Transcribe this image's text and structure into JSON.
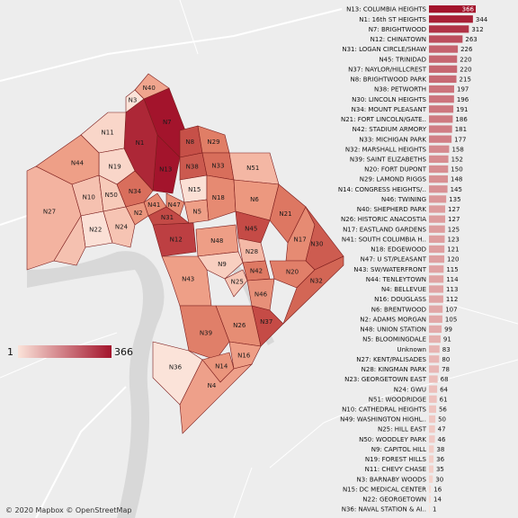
{
  "legend": {
    "min_label": "1",
    "max_label": "366",
    "color_low": "#fbe3d9",
    "color_high": "#a3142c"
  },
  "credit": "© 2020 Mapbox © OpenStreetMap",
  "chart_data": {
    "type": "bar",
    "orientation": "horizontal",
    "color_scale": {
      "min": 1,
      "max": 366,
      "low": "#fbe3d9",
      "high": "#a3142c"
    },
    "categories": [
      "N13: COLUMBIA HEIGHTS",
      "N1: 16th ST HEIGHTS",
      "N7: BRIGHTWOOD",
      "N12: CHINATOWN",
      "N31: LOGAN CIRCLE/SHAW",
      "N45: TRINIDAD",
      "N37: NAYLOR/HILLCREST",
      "N8: BRIGHTWOOD PARK",
      "N38: PETWORTH",
      "N30: LINCOLN HEIGHTS",
      "N34: MOUNT PLEASANT",
      "N21: FORT LINCOLN/GATE..",
      "N42: STADIUM ARMORY",
      "N33: MICHIGAN PARK",
      "N32: MARSHALL HEIGHTS",
      "N39: SAINT ELIZABETHS",
      "N20: FORT DUPONT",
      "N29: LAMOND RIGGS",
      "N14: CONGRESS HEIGHTS/..",
      "N46: TWINING",
      "N40: SHEPHERD PARK",
      "N26: HISTORIC ANACOSTIA",
      "N17: EASTLAND GARDENS",
      "N41: SOUTH COLUMBIA H..",
      "N18: EDGEWOOD",
      "N47: U ST/PLEASANT",
      "N43: SW/WATERFRONT",
      "N44: TENLEYTOWN",
      "N4: BELLEVUE",
      "N16: DOUGLASS",
      "N6: BRENTWOOD",
      "N2: ADAMS MORGAN",
      "N48: UNION STATION",
      "N5: BLOOMINGDALE",
      "Unknown",
      "N27: KENT/PALISADES",
      "N28: KINGMAN PARK",
      "N23: GEORGETOWN EAST",
      "N24: GWU",
      "N51: WOODRIDGE",
      "N10: CATHEDRAL HEIGHTS",
      "N49: WASHINGTON HIGHL..",
      "N25: HILL EAST",
      "N50: WOODLEY PARK",
      "N9: CAPITOL HILL",
      "N19: FOREST HILLS",
      "N11: CHEVY CHASE",
      "N3: BARNABY WOODS",
      "N15: DC MEDICAL CENTER",
      "N22: GEORGETOWN",
      "N36: NAVAL STATION & AI.."
    ],
    "values": [
      366,
      344,
      312,
      263,
      226,
      220,
      220,
      215,
      197,
      196,
      191,
      186,
      181,
      177,
      158,
      152,
      150,
      148,
      145,
      135,
      127,
      127,
      125,
      123,
      121,
      120,
      115,
      114,
      113,
      112,
      107,
      105,
      99,
      91,
      83,
      80,
      78,
      68,
      64,
      61,
      56,
      50,
      47,
      46,
      38,
      36,
      35,
      30,
      16,
      14,
      1
    ],
    "xlim": [
      0,
      366
    ],
    "map_labels": [
      "N40",
      "N3",
      "N7",
      "N11",
      "N19",
      "N1",
      "N8",
      "N29",
      "N44",
      "N38",
      "N33",
      "N13",
      "N51",
      "N10",
      "N50",
      "N34",
      "N15",
      "N27",
      "N41",
      "N2",
      "N47",
      "N18",
      "N6",
      "N5",
      "N21",
      "N22",
      "N24",
      "N31",
      "N45",
      "N12",
      "N17",
      "N30",
      "N48",
      "N28",
      "N42",
      "N20",
      "N32",
      "N9",
      "N43",
      "N25",
      "N46",
      "N26",
      "N37",
      "N39",
      "N16",
      "N36",
      "N14",
      "N4"
    ]
  }
}
